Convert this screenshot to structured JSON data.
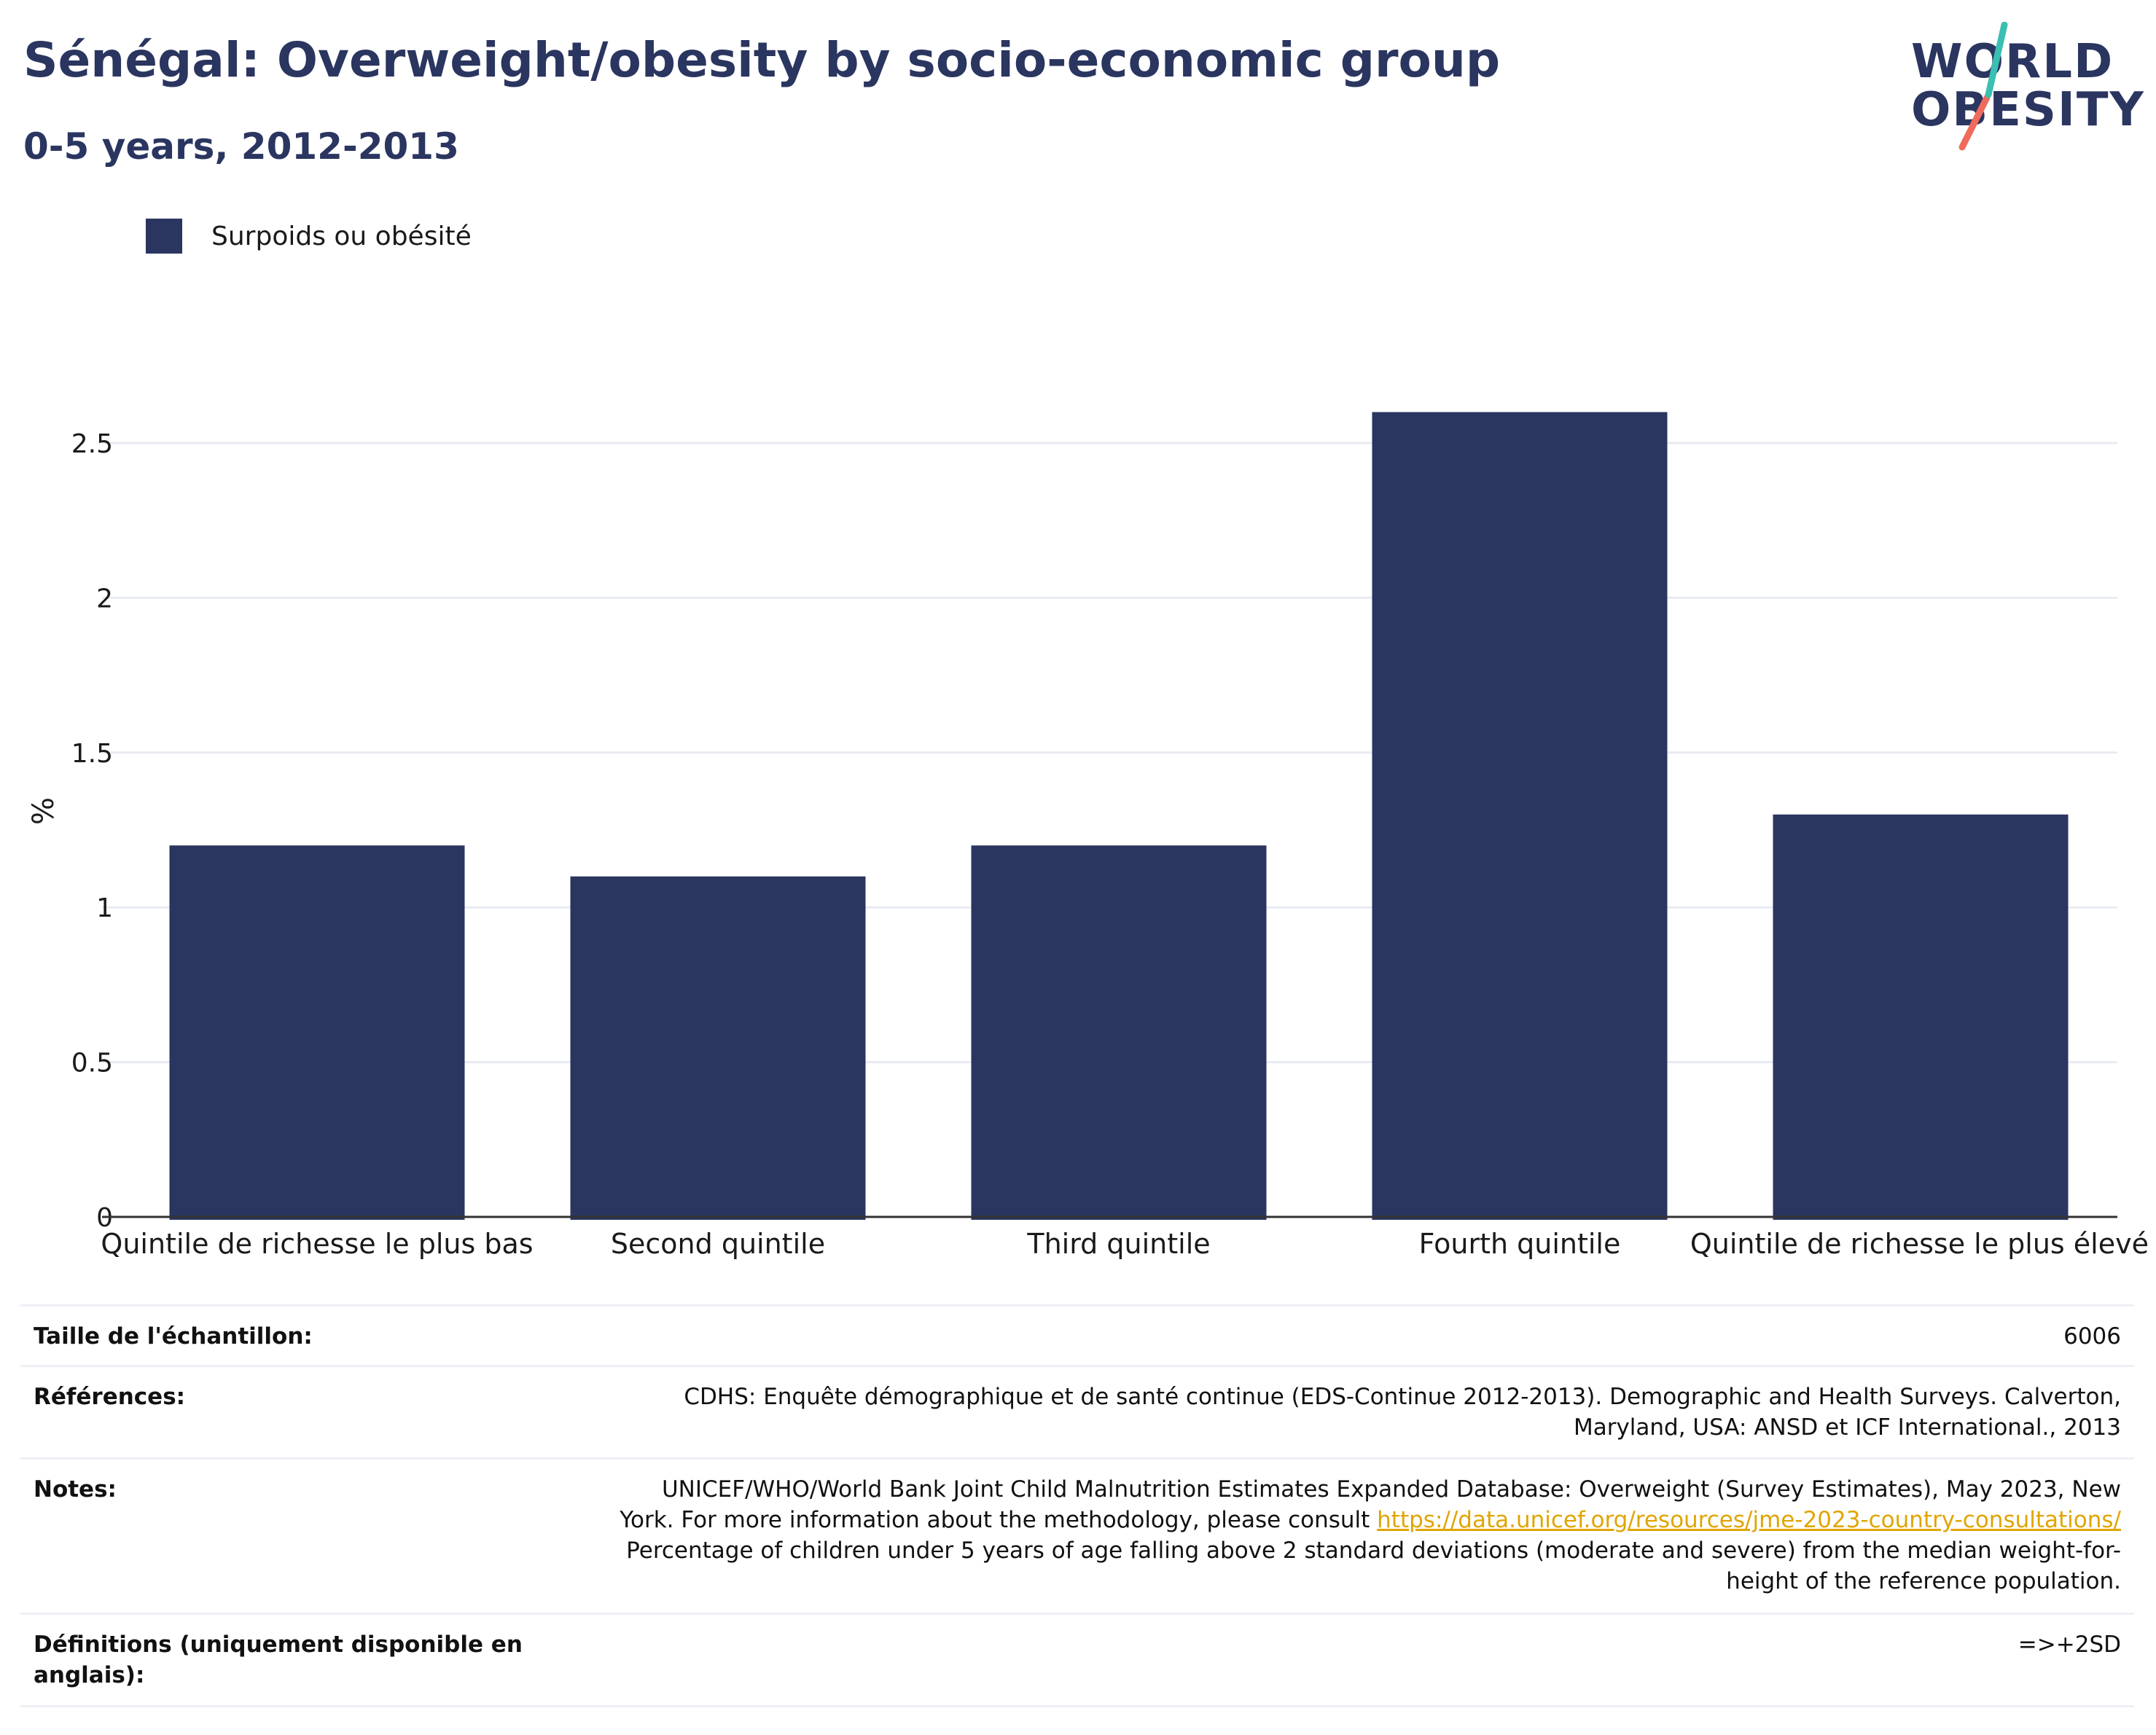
{
  "title": "Sénégal: Overweight/obesity by socio-economic group",
  "subtitle": "0-5 years, 2012-2013",
  "logo": {
    "line1": "WORLD",
    "line2": "OBESITY"
  },
  "colors": {
    "bar": "#2a3560",
    "title": "#2a3560",
    "gridline": "#e8ebf2",
    "axis": "#333333",
    "link": "#e0a500",
    "logo_teal": "#3bbfb2",
    "logo_coral": "#ef6b5b"
  },
  "chart_data": {
    "type": "bar",
    "title": "Sénégal: Overweight/obesity by socio-economic group",
    "subtitle": "0-5 years, 2012-2013",
    "categories": [
      "Quintile de richesse le plus bas",
      "Second quintile",
      "Third quintile",
      "Fourth quintile",
      "Quintile de richesse le plus élevé"
    ],
    "series": [
      {
        "name": "Surpoids ou obésité",
        "values": [
          1.2,
          1.1,
          1.2,
          2.6,
          1.3
        ]
      }
    ],
    "xlabel": "",
    "ylabel": "%",
    "ylim": [
      0,
      2.75
    ],
    "yticks": [
      0,
      0.5,
      1,
      1.5,
      2,
      2.5
    ],
    "ytick_labels": [
      "0",
      "0.5",
      "1",
      "1.5",
      "2",
      "2.5"
    ],
    "grid": true,
    "legend_position": "top-left"
  },
  "info": {
    "sample_label": "Taille de l'échantillon:",
    "sample_value": "6006",
    "references_label": "Références:",
    "references_value": "CDHS: Enquête démographique et de santé continue (EDS-Continue 2012-2013). Demographic and Health Surveys. Calverton, Maryland, USA: ANSD et ICF International., 2013",
    "notes_label": "Notes:",
    "notes_part1": "UNICEF/WHO/World Bank Joint Child Malnutrition Estimates Expanded Database: Overweight (Survey Estimates), May 2023, New York. For more information about the methodology, please consult ",
    "notes_link": "https://data.unicef.org/resources/jme-2023-country-consultations/",
    "notes_part2": " Percentage of children under 5 years of age falling above 2 standard deviations (moderate and severe) from the median weight-for-height of the reference population.",
    "definitions_label": "Définitions (uniquement disponible en anglais):",
    "definitions_value": "=>+2SD"
  }
}
